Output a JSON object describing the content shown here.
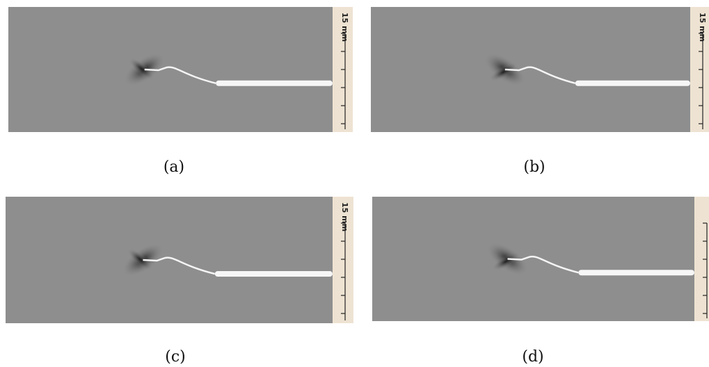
{
  "panels": [
    {
      "caption": "(a)",
      "scale_label": "15 mm"
    },
    {
      "caption": "(b)",
      "scale_label": "15 mm"
    },
    {
      "caption": "(c)",
      "scale_label": "15 mm"
    },
    {
      "caption": "(d)"
    }
  ]
}
